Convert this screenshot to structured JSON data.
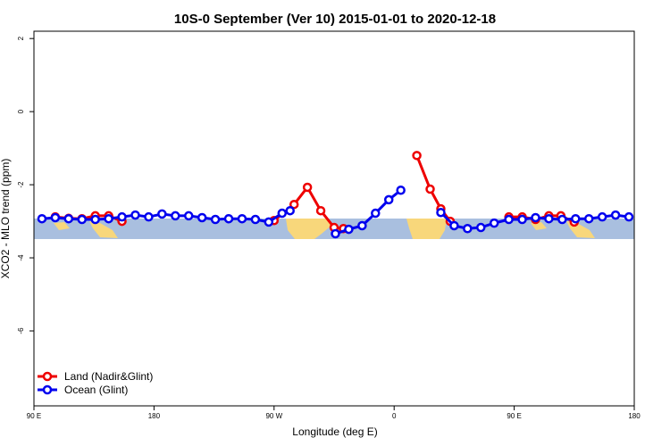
{
  "chart_data": {
    "type": "line",
    "title": "10S-0 September (Ver 10)   2015-01-01 to 2020-12-18",
    "x_label": "Longitude (deg E)",
    "y_label": "XCO2 - MLO trend (ppm)",
    "xlim": [
      90,
      540
    ],
    "ylim": [
      -8.05,
      2.2
    ],
    "xticks": [
      {
        "value": 90,
        "label": "90 E"
      },
      180,
      {
        "value": 270,
        "label": "90 W"
      },
      {
        "value": 360,
        "label": "0"
      },
      {
        "value": 450,
        "label": "90 E"
      },
      {
        "value": 540,
        "label": "180"
      }
    ],
    "yticks": [
      2,
      0,
      -2,
      -4,
      -6
    ],
    "legend": "bottomleft",
    "series": [
      {
        "name": "Land (Nadir&Glint)",
        "color": "#ee0000",
        "x": [
          106,
          116,
          126,
          136,
          146,
          156,
          200,
          270,
          285,
          295,
          305,
          315,
          322,
          350,
          377,
          387,
          395,
          402,
          420,
          446,
          456,
          466,
          476,
          485,
          495
        ],
        "values": [
          -2.88,
          -2.92,
          -2.93,
          -2.85,
          -2.85,
          -3.0,
          null,
          -2.98,
          -2.54,
          -2.07,
          -2.71,
          -3.17,
          -3.2,
          null,
          -1.2,
          -2.12,
          -2.66,
          -3.0,
          null,
          -2.88,
          -2.88,
          -2.95,
          -2.85,
          -2.85,
          -3.02
        ]
      },
      {
        "name": "Ocean (Glint)",
        "color": "#0000ee",
        "x": [
          96,
          106,
          116,
          126,
          136,
          146,
          156,
          166,
          176,
          186,
          196,
          206,
          216,
          226,
          236,
          246,
          256,
          266,
          276,
          282,
          300,
          316,
          326,
          336,
          346,
          356,
          365,
          380,
          395,
          405,
          415,
          425,
          435,
          446,
          456,
          466,
          476,
          486,
          496,
          506,
          516,
          526,
          536
        ],
        "values": [
          -2.93,
          -2.9,
          -2.93,
          -2.95,
          -2.95,
          -2.93,
          -2.88,
          -2.83,
          -2.88,
          -2.8,
          -2.85,
          -2.85,
          -2.9,
          -2.95,
          -2.93,
          -2.93,
          -2.95,
          -3.02,
          -2.78,
          -2.71,
          null,
          -3.34,
          -3.22,
          -3.12,
          -2.78,
          -2.41,
          -2.15,
          null,
          -2.76,
          -3.12,
          -3.2,
          -3.17,
          -3.05,
          -2.95,
          -2.95,
          -2.9,
          -2.93,
          -2.95,
          -2.93,
          -2.93,
          -2.88,
          -2.83,
          -2.88
        ]
      }
    ]
  }
}
